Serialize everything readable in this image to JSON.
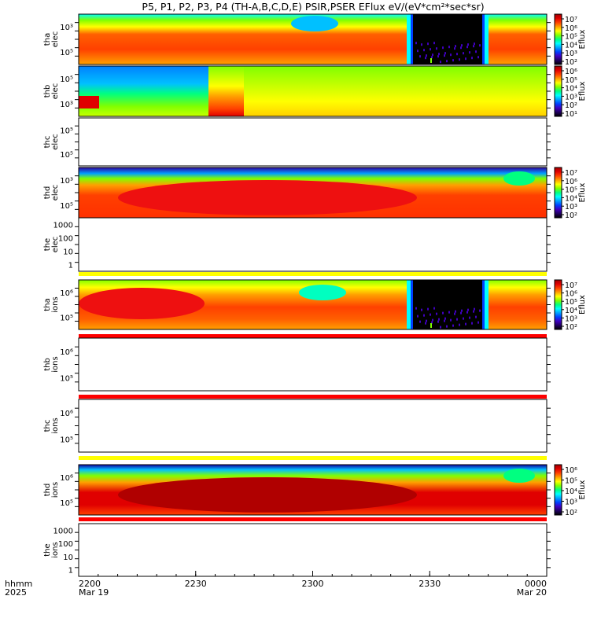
{
  "chart_data": {
    "type": "heatmap",
    "title": "P5, P1, P2, P3, P4 (TH-A,B,C,D,E) PSIR,PSER EFlux eV/(eV*cm²*sec*sr)",
    "x_axis": {
      "row_label_top": "hhmm",
      "row_label_bottom": "2025",
      "ticks": [
        "2200",
        "2230",
        "2300",
        "2330",
        "0000"
      ],
      "dates": [
        "Mar 19",
        "",
        "",
        "",
        "Mar 20"
      ],
      "range_hhmm": [
        "2200",
        "0000"
      ]
    },
    "panels": [
      {
        "id": "tha_elec",
        "probe": "tha",
        "species": "elec",
        "ylabel": [
          "tha",
          "elec"
        ],
        "yticks": [
          "10³",
          "10⁵"
        ],
        "has_data": true,
        "colorbar": {
          "label": "Eflux",
          "ticks": [
            "10⁷",
            "10⁶",
            "10⁵",
            "10⁴",
            "10³",
            "10²"
          ]
        },
        "top_strip": null,
        "bottom_strip": null
      },
      {
        "id": "thb_elec",
        "probe": "thb",
        "species": "elec",
        "ylabel": [
          "thb",
          "elec"
        ],
        "yticks": [
          "10⁵",
          "10³"
        ],
        "has_data": true,
        "colorbar": {
          "label": "Eflux",
          "ticks": [
            "10⁶",
            "10⁵",
            "10⁴",
            "10³",
            "10²",
            "10¹"
          ]
        },
        "top_strip": null,
        "bottom_strip": null
      },
      {
        "id": "thc_elec",
        "probe": "thc",
        "species": "elec",
        "ylabel": [
          "thc",
          "elec"
        ],
        "yticks": [
          "10⁵",
          "10⁵"
        ],
        "has_data": false,
        "colorbar": null,
        "top_strip": null,
        "bottom_strip": null
      },
      {
        "id": "thd_elec",
        "probe": "thd",
        "species": "elec",
        "ylabel": [
          "thd",
          "elec"
        ],
        "yticks": [
          "10³",
          "10⁵"
        ],
        "has_data": true,
        "colorbar": {
          "label": "Eflux",
          "ticks": [
            "10⁷",
            "10⁶",
            "10⁵",
            "10⁴",
            "10³",
            "10²"
          ]
        },
        "top_strip": null,
        "bottom_strip": null
      },
      {
        "id": "the_elec",
        "probe": "the",
        "species": "elec",
        "ylabel": [
          "the",
          "elec"
        ],
        "yticks": [
          "1000",
          "100",
          "10",
          "1"
        ],
        "has_data": false,
        "colorbar": null,
        "top_strip": null,
        "bottom_strip": "#ffff00"
      },
      {
        "id": "tha_ions",
        "probe": "tha",
        "species": "ions",
        "ylabel": [
          "tha",
          "ions"
        ],
        "yticks": [
          "10⁶",
          "10⁵"
        ],
        "has_data": true,
        "colorbar": {
          "label": "Eflux",
          "ticks": [
            "10⁷",
            "10⁶",
            "10⁵",
            "10⁴",
            "10³",
            "10²"
          ]
        },
        "top_strip": null,
        "bottom_strip": "#ff0000"
      },
      {
        "id": "thb_ions",
        "probe": "thb",
        "species": "ions",
        "ylabel": [
          "thb",
          "ions"
        ],
        "yticks": [
          "10⁶",
          "10⁵"
        ],
        "has_data": false,
        "colorbar": null,
        "top_strip": null,
        "bottom_strip": "#ff0000"
      },
      {
        "id": "thc_ions",
        "probe": "thc",
        "species": "ions",
        "ylabel": [
          "thc",
          "ions"
        ],
        "yticks": [
          "10⁶",
          "10⁵"
        ],
        "has_data": false,
        "colorbar": null,
        "top_strip": null,
        "bottom_strip": "#ffff00"
      },
      {
        "id": "thd_ions",
        "probe": "thd",
        "species": "ions",
        "ylabel": [
          "thd",
          "ions"
        ],
        "yticks": [
          "10⁶",
          "10⁵"
        ],
        "has_data": true,
        "colorbar": {
          "label": "Eflux",
          "ticks": [
            "10⁶",
            "10⁵",
            "10⁴",
            "10³",
            "10²"
          ]
        },
        "top_strip": null,
        "bottom_strip": "#ff0000"
      },
      {
        "id": "the_ions",
        "probe": "the",
        "species": "ions",
        "ylabel": [
          "the",
          "ions"
        ],
        "yticks": [
          "1000",
          "100",
          "10",
          "1"
        ],
        "has_data": false,
        "colorbar": null,
        "top_strip": null,
        "bottom_strip": null
      }
    ],
    "colormap": [
      "#000000",
      "#200060",
      "#4000c0",
      "#0040ff",
      "#00a0ff",
      "#00ffff",
      "#00ff80",
      "#80ff00",
      "#ffff00",
      "#ffa000",
      "#ff4000",
      "#e00000",
      "#a00000"
    ]
  }
}
